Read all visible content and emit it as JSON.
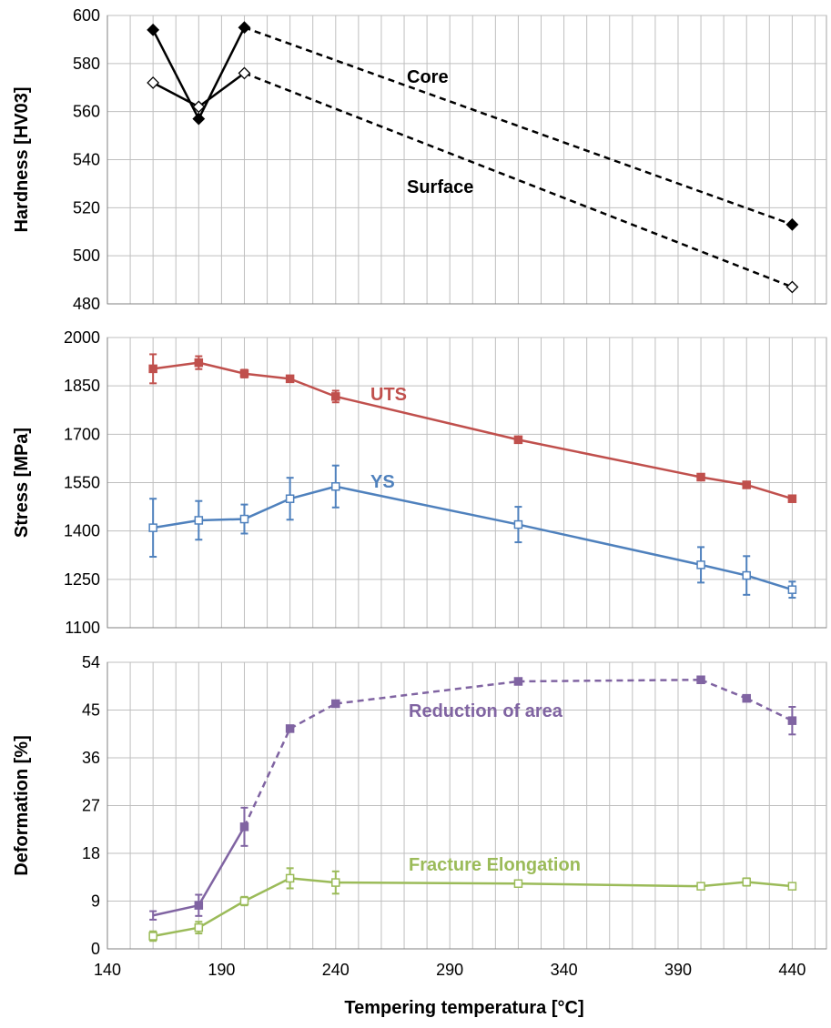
{
  "x_axis": {
    "label": "Tempering temperatura [°C]",
    "range": [
      140,
      455
    ],
    "ticks": [
      140,
      190,
      240,
      290,
      340,
      390,
      440
    ]
  },
  "chart_data": [
    {
      "type": "line",
      "ylabel": "Hardness [HV03]",
      "ylim": [
        480,
        600
      ],
      "yticks": [
        480,
        500,
        520,
        540,
        560,
        580,
        600
      ],
      "grid": true,
      "series": [
        {
          "name": "Core",
          "color": "#000000",
          "marker": "filled-diamond",
          "x": [
            160,
            180,
            200,
            440
          ],
          "y": [
            594,
            557,
            595,
            513
          ],
          "dash_from_index": 2
        },
        {
          "name": "Surface",
          "color": "#000000",
          "marker": "open-diamond",
          "x": [
            160,
            180,
            200,
            440
          ],
          "y": [
            572,
            562,
            576,
            487
          ],
          "dash_from_index": 2
        }
      ]
    },
    {
      "type": "line",
      "ylabel": "Stress [MPa]",
      "ylim": [
        1100,
        2000
      ],
      "yticks": [
        1100,
        1250,
        1400,
        1550,
        1700,
        1850,
        2000
      ],
      "grid": true,
      "series": [
        {
          "name": "UTS",
          "color": "#c0504d",
          "marker": "filled-square",
          "x": [
            160,
            180,
            200,
            220,
            240,
            320,
            400,
            420,
            440
          ],
          "y": [
            1903,
            1922,
            1888,
            1872,
            1817,
            1683,
            1567,
            1543,
            1500
          ],
          "yerr": [
            45,
            20,
            12,
            0,
            18,
            0,
            0,
            0,
            0
          ]
        },
        {
          "name": "YS",
          "color": "#4f81bd",
          "marker": "open-square",
          "x": [
            160,
            180,
            200,
            220,
            240,
            320,
            400,
            420,
            440
          ],
          "y": [
            1410,
            1433,
            1437,
            1500,
            1538,
            1420,
            1295,
            1262,
            1218
          ],
          "yerr": [
            90,
            60,
            45,
            65,
            65,
            55,
            55,
            60,
            25
          ]
        }
      ]
    },
    {
      "type": "line",
      "ylabel": "Deformation [%]",
      "ylim": [
        0,
        54
      ],
      "yticks": [
        0,
        9,
        18,
        27,
        36,
        45,
        54
      ],
      "grid": true,
      "series": [
        {
          "name": "Reduction of area",
          "color": "#8064a2",
          "marker": "filled-square",
          "x": [
            160,
            180,
            200,
            220,
            240,
            320,
            400,
            420,
            440
          ],
          "y": [
            6.3,
            8.2,
            23.0,
            41.5,
            46.2,
            50.4,
            50.7,
            47.2,
            43.0
          ],
          "yerr": [
            0.8,
            2.0,
            3.6,
            0,
            0,
            0,
            0,
            0,
            2.6
          ],
          "dash_from_index": 2
        },
        {
          "name": "Fracture Elongation",
          "color": "#9bbb59",
          "marker": "open-square",
          "x": [
            160,
            180,
            200,
            220,
            240,
            320,
            400,
            420,
            440
          ],
          "y": [
            2.4,
            4.0,
            9.0,
            13.3,
            12.5,
            12.3,
            11.8,
            12.6,
            11.8
          ],
          "yerr": [
            0.9,
            1.1,
            0.8,
            1.9,
            2.1,
            0,
            0,
            0.7,
            0.5
          ]
        }
      ]
    }
  ]
}
